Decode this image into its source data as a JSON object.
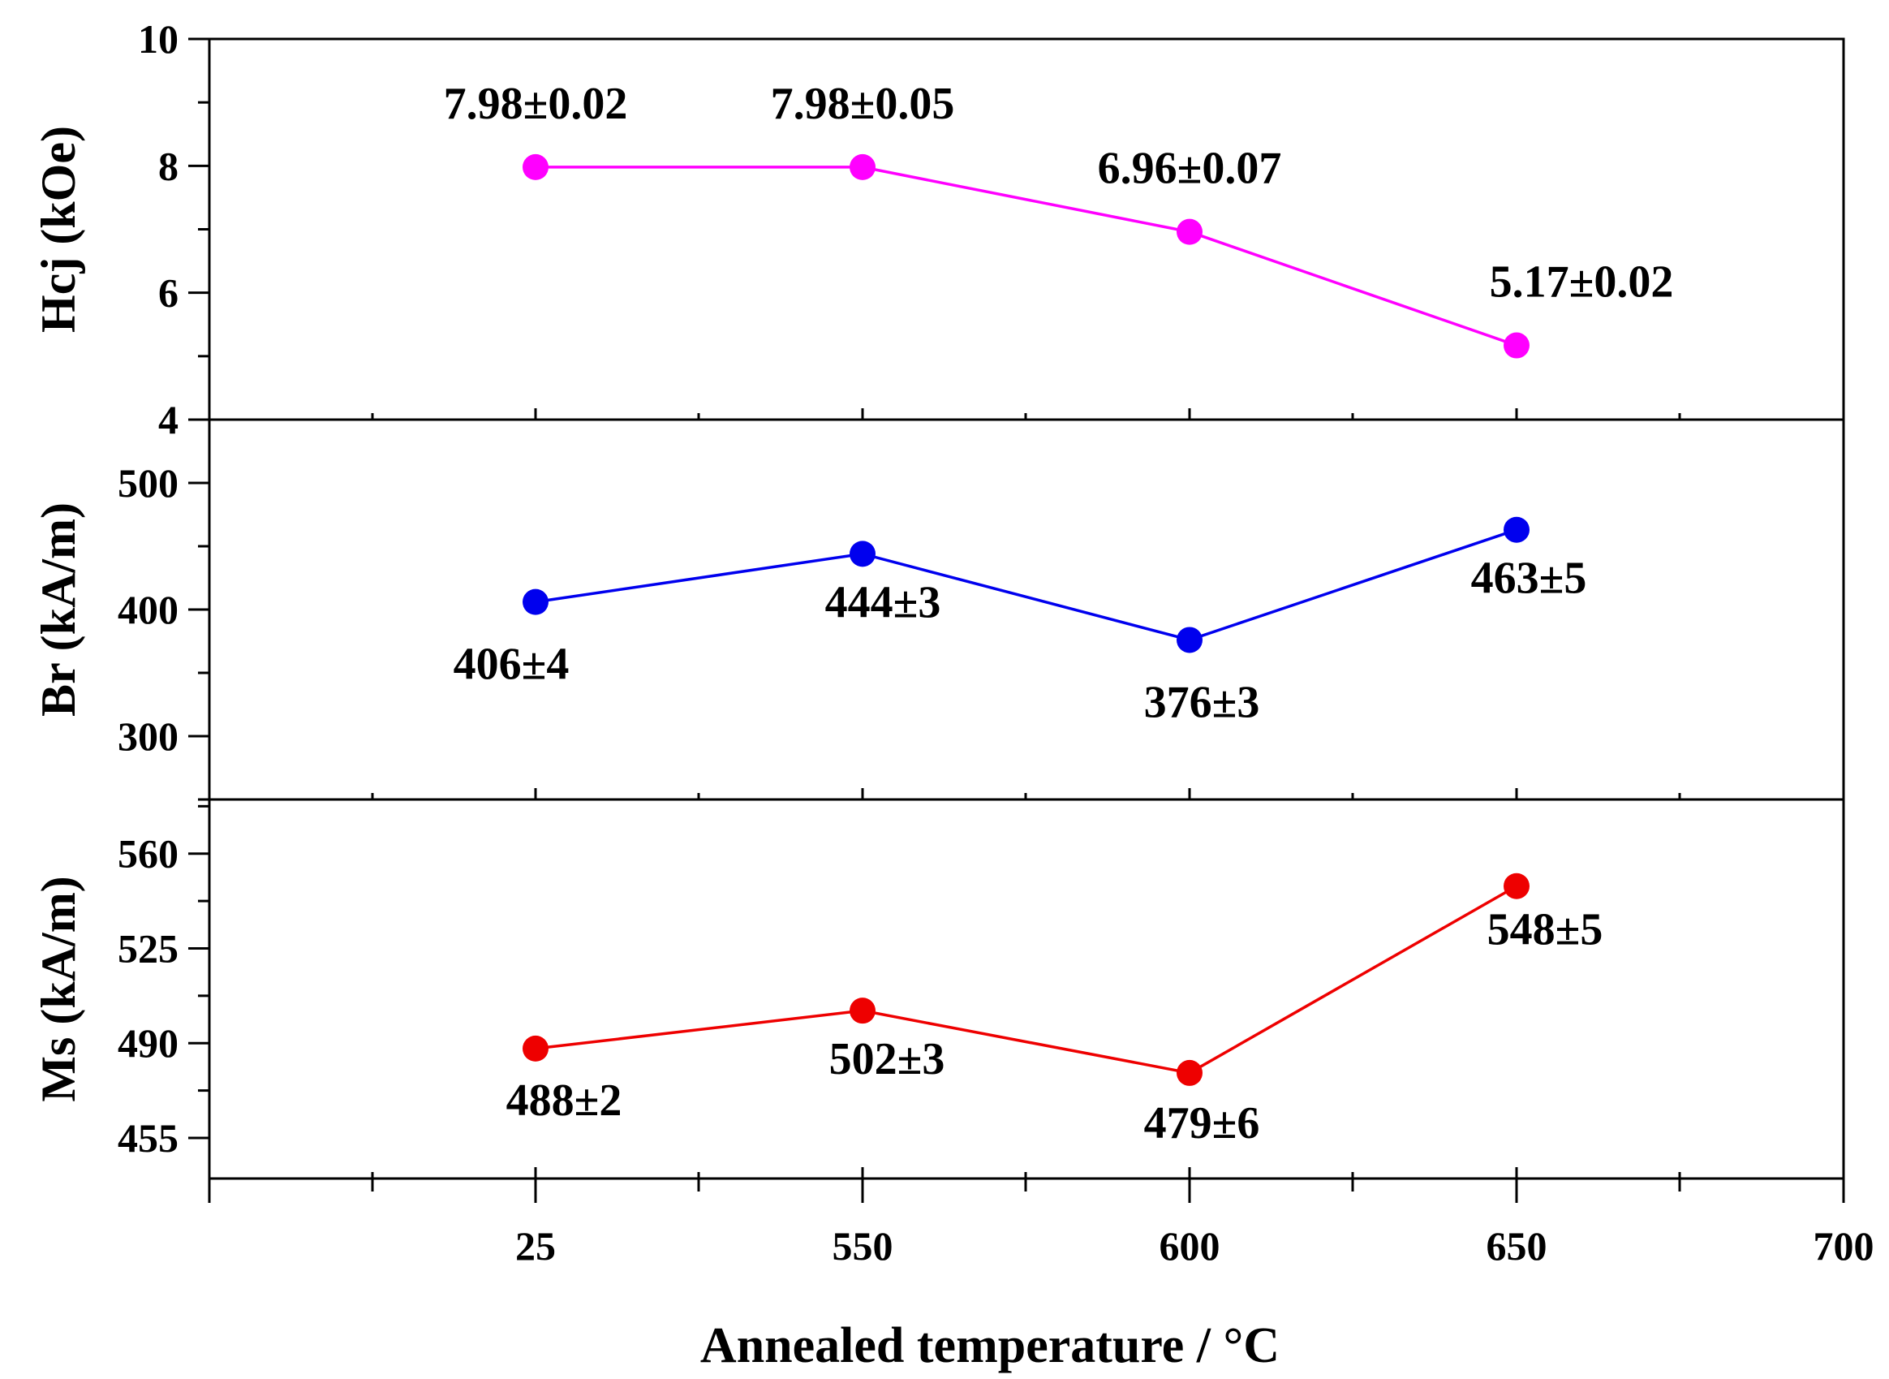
{
  "chart_data": {
    "type": "line",
    "xlabel": "Annealed temperature / °C",
    "x_tick_labels": [
      "25",
      "550",
      "600",
      "650",
      "700"
    ],
    "x_values": [
      "25",
      "550",
      "600",
      "650"
    ],
    "panels": [
      {
        "id": "hcj",
        "ylabel": "Hcj (kOe)",
        "color": "#ff00ff",
        "ylim": [
          4,
          10
        ],
        "yticks": [
          "4",
          "6",
          "8",
          "10"
        ],
        "values": [
          7.98,
          7.98,
          6.96,
          5.17
        ],
        "labels": [
          "7.98±0.02",
          "7.98±0.05",
          "6.96±0.07",
          "5.17±0.02"
        ]
      },
      {
        "id": "br",
        "ylabel": "Br (kA/m)",
        "color": "#0000ee",
        "ylim": [
          250,
          550
        ],
        "yticks": [
          "300",
          "400",
          "500"
        ],
        "values": [
          406,
          444,
          376,
          463
        ],
        "labels": [
          "406±4",
          "444±3",
          "376±3",
          "463±5"
        ]
      },
      {
        "id": "ms",
        "ylabel": "Ms (kA/m)",
        "color": "#ee0000",
        "ylim": [
          440,
          580
        ],
        "yticks": [
          "455",
          "490",
          "525",
          "560"
        ],
        "values": [
          488,
          502,
          479,
          548
        ],
        "labels": [
          "488±2",
          "502±3",
          "479±6",
          "548±5"
        ]
      }
    ]
  }
}
